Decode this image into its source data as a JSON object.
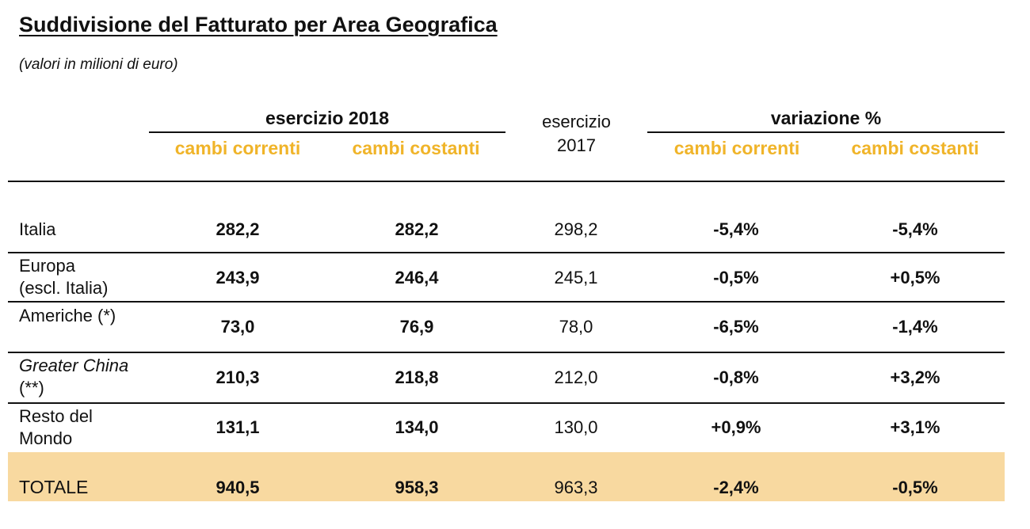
{
  "title": "Suddivisione del Fatturato per Area Geografica",
  "subtitle": "(valori in milioni di euro)",
  "header": {
    "group_2018": "esercizio 2018",
    "col_2017_line1": "esercizio",
    "col_2017_line2": "2017",
    "group_var": "variazione %",
    "cambi_correnti": "cambi correnti",
    "cambi_costanti": "cambi costanti"
  },
  "rows": [
    {
      "label_l1": "Italia",
      "label_l2": "",
      "c2018_corr": "282,2",
      "c2018_cost": "282,2",
      "e2017": "298,2",
      "var_corr": "-5,4%",
      "var_cost": "-5,4%"
    },
    {
      "label_l1": "Europa",
      "label_l2": "(escl. Italia)",
      "c2018_corr": "243,9",
      "c2018_cost": "246,4",
      "e2017": "245,1",
      "var_corr": "-0,5%",
      "var_cost": "+0,5%"
    },
    {
      "label_l1": "Americhe (*)",
      "label_l2": "",
      "c2018_corr": "73,0",
      "c2018_cost": "76,9",
      "e2017": "78,0",
      "var_corr": "-6,5%",
      "var_cost": "-1,4%"
    },
    {
      "label_l1": "Greater China",
      "label_l2": "(**)",
      "c2018_corr": "210,3",
      "c2018_cost": "218,8",
      "e2017": "212,0",
      "var_corr": "-0,8%",
      "var_cost": "+3,2%"
    },
    {
      "label_l1": "Resto del",
      "label_l2": "Mondo",
      "c2018_corr": "131,1",
      "c2018_cost": "134,0",
      "e2017": "130,0",
      "var_corr": "+0,9%",
      "var_cost": "+3,1%"
    }
  ],
  "total": {
    "label": "TOTALE",
    "c2018_corr": "940,5",
    "c2018_cost": "958,3",
    "e2017": "963,3",
    "var_corr": "-2,4%",
    "var_cost": "-0,5%"
  },
  "colors": {
    "accent": "#f0b429",
    "total_band": "#f8d9a0"
  }
}
